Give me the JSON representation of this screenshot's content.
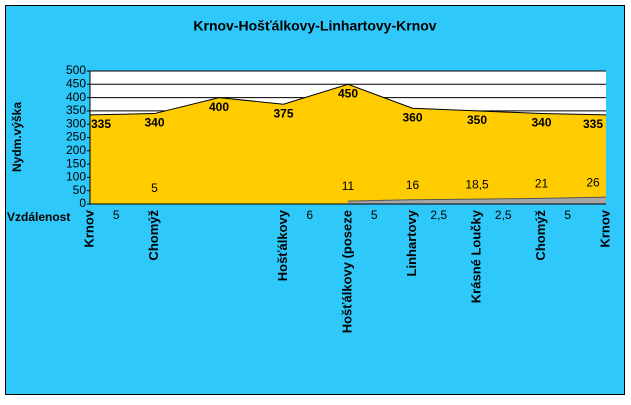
{
  "chart_data": {
    "type": "area",
    "title": "Krnov-Hošťálkovy-Linhartovy-Krnov",
    "y_label": "Nydm.výška",
    "categories": [
      "Krnov",
      "Chomýž",
      null,
      "Hošťálkovy",
      "Hošťálkovy (poseze",
      "Linhartovy",
      "Krásné Loučky",
      "Chomýž",
      "Krnov"
    ],
    "series": [
      {
        "name": "Nydm.výška",
        "color": "#ffcc00",
        "values": [
          335,
          340,
          400,
          375,
          450,
          360,
          350,
          340,
          335
        ]
      },
      {
        "name": "Vzdálenost",
        "color": "#a6a6a6",
        "values": [
          null,
          5,
          null,
          null,
          11,
          16,
          18.5,
          21,
          26
        ],
        "value_labels": [
          null,
          "5",
          null,
          null,
          "11",
          "16",
          "18,5",
          "21",
          "26"
        ]
      }
    ],
    "segment_row": {
      "label": "Vzdálenost",
      "values": [
        5,
        null,
        null,
        6,
        5,
        2.5,
        2.5,
        5
      ],
      "value_labels": [
        "5",
        null,
        null,
        "6",
        "5",
        "2,5",
        "2,5",
        "5"
      ]
    },
    "ylim": [
      0,
      500
    ],
    "yticks": [
      0,
      50,
      100,
      150,
      200,
      250,
      300,
      350,
      400,
      450,
      500
    ],
    "grid": true
  }
}
